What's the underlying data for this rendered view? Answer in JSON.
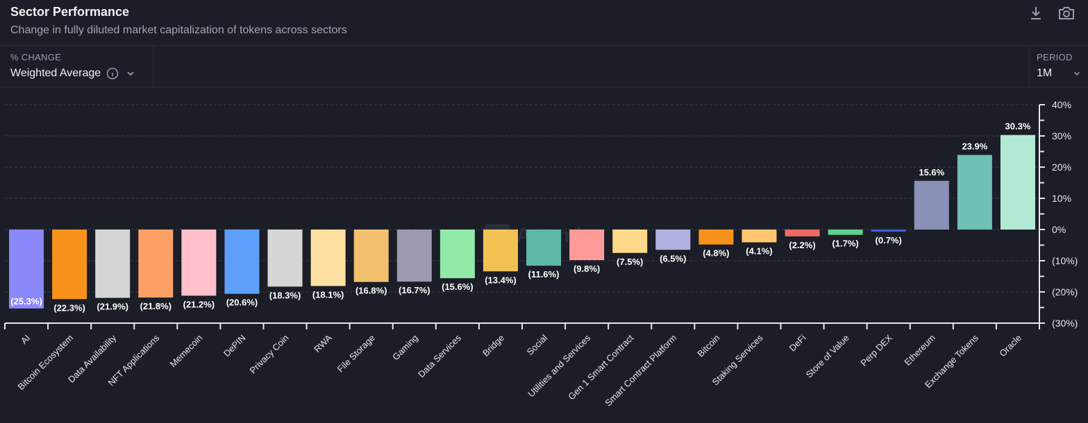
{
  "header": {
    "title": "Sector Performance",
    "subtitle": "Change in fully diluted market capitalization of tokens across sectors",
    "icons": [
      "download-icon",
      "camera-icon"
    ]
  },
  "filters": {
    "change_label": "% CHANGE",
    "change_value": "Weighted Average",
    "period_label": "PERIOD",
    "period_value": "1M"
  },
  "watermark": "Artemis",
  "chart_data": {
    "type": "bar",
    "title": "",
    "xlabel": "",
    "ylabel": "",
    "ylim": [
      -30,
      40
    ],
    "yticks": [
      "40%",
      "30%",
      "20%",
      "10%",
      "0%",
      "(10%)",
      "(20%)",
      "(30%)"
    ],
    "ytick_values": [
      40,
      30,
      20,
      10,
      0,
      -10,
      -20,
      -30
    ],
    "y_axis_position": "right",
    "grid": true,
    "categories": [
      "AI",
      "Bitcoin Ecosystem",
      "Data Availability",
      "NFT Applications",
      "Memecoin",
      "DePIN",
      "Privacy Coin",
      "RWA",
      "File Storage",
      "Gaming",
      "Data Services",
      "Bridge",
      "Social",
      "Utilities and Services",
      "Gen 1 Smart Contract",
      "Smart Contract Platform",
      "Bitcoin",
      "Staking Services",
      "DeFi",
      "Store of Value",
      "Perp DEX",
      "Ethereum",
      "Exchange Tokens",
      "Oracle"
    ],
    "values": [
      -25.3,
      -22.3,
      -21.9,
      -21.8,
      -21.2,
      -20.6,
      -18.3,
      -18.1,
      -16.8,
      -16.7,
      -15.6,
      -13.4,
      -11.6,
      -9.8,
      -7.5,
      -6.5,
      -4.8,
      -4.1,
      -2.2,
      -1.7,
      -0.7,
      15.6,
      23.9,
      30.3
    ],
    "labels": [
      "(25.3%)",
      "(22.3%)",
      "(21.9%)",
      "(21.8%)",
      "(21.2%)",
      "(20.6%)",
      "(18.3%)",
      "(18.1%)",
      "(16.8%)",
      "(16.7%)",
      "(15.6%)",
      "(13.4%)",
      "(11.6%)",
      "(9.8%)",
      "(7.5%)",
      "(6.5%)",
      "(4.8%)",
      "(4.1%)",
      "(2.2%)",
      "(1.7%)",
      "(0.7%)",
      "15.6%",
      "23.9%",
      "30.3%"
    ],
    "colors": [
      "#8a87fb",
      "#f7931a",
      "#d5d5d5",
      "#ffa066",
      "#ffc0cc",
      "#5ca0fb",
      "#d6d6d6",
      "#ffe0a3",
      "#f3c070",
      "#9a9bb0",
      "#92eaa8",
      "#f2c255",
      "#5db9a6",
      "#ff9c9a",
      "#ffd98a",
      "#b1b2e0",
      "#f7931a",
      "#ffc870",
      "#ec6a64",
      "#5fd090",
      "#3a60d8",
      "#8a91b8",
      "#6fc1b7",
      "#b3ead6"
    ]
  }
}
